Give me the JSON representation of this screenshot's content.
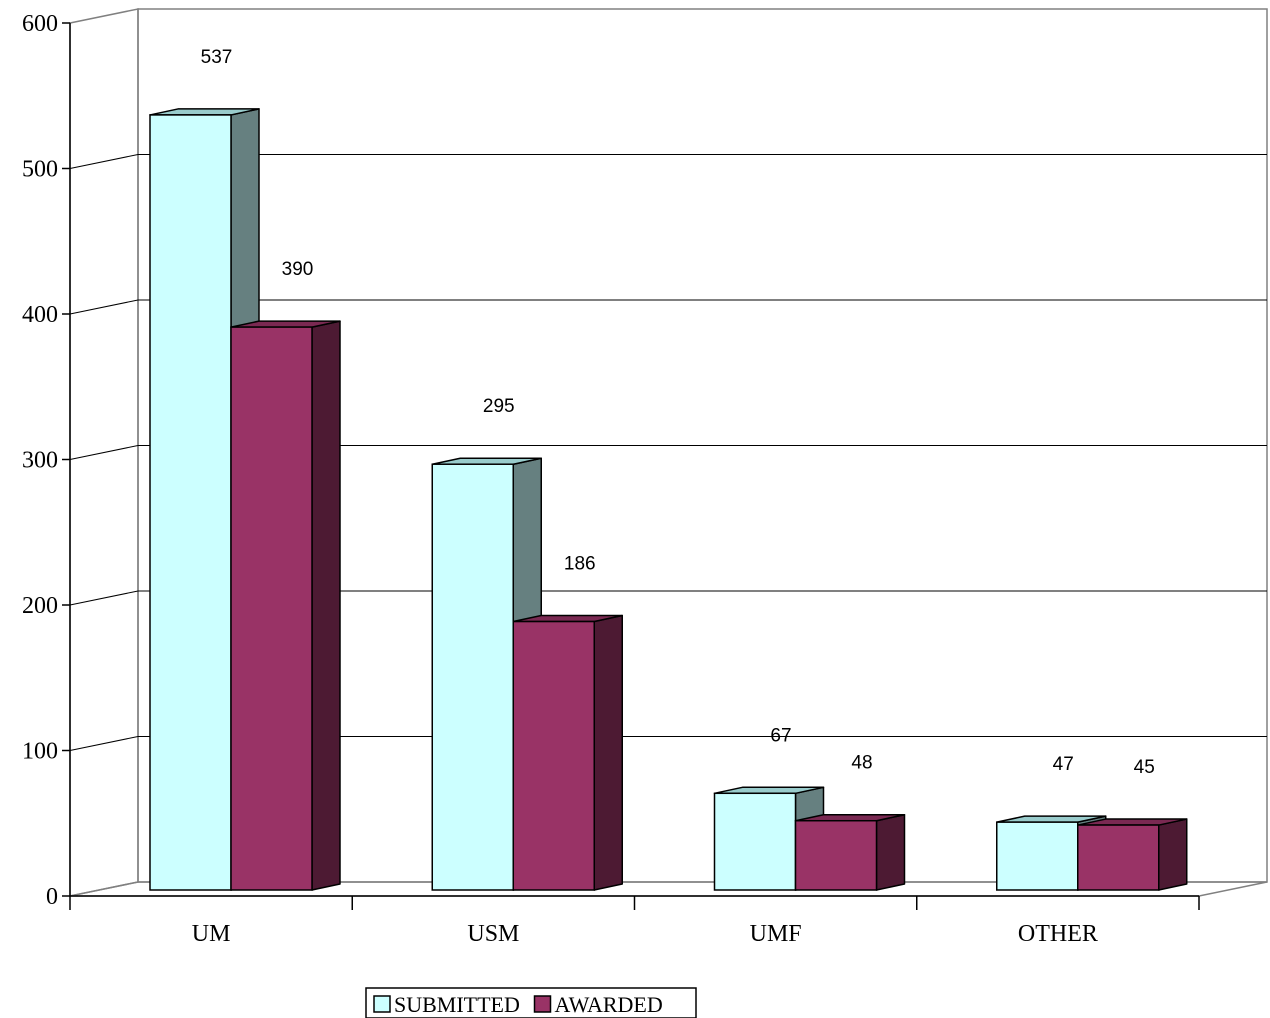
{
  "chart_data": {
    "type": "bar",
    "categories": [
      "UM",
      "USM",
      "UMF",
      "OTHER"
    ],
    "series": [
      {
        "name": "SUBMITTED",
        "values": [
          537,
          295,
          67,
          47
        ],
        "color_front": "#CCFFFF",
        "color_side": "#668080",
        "color_top": "#99CCCC"
      },
      {
        "name": "AWARDED",
        "values": [
          390,
          186,
          48,
          45
        ],
        "color_front": "#993366",
        "color_side": "#4D1A33",
        "color_top": "#7A2952"
      }
    ],
    "yticks": [
      0,
      100,
      200,
      300,
      400,
      500,
      600
    ],
    "ylim": [
      0,
      600
    ],
    "grid": true,
    "legend_position": "bottom",
    "data_labels": true
  }
}
